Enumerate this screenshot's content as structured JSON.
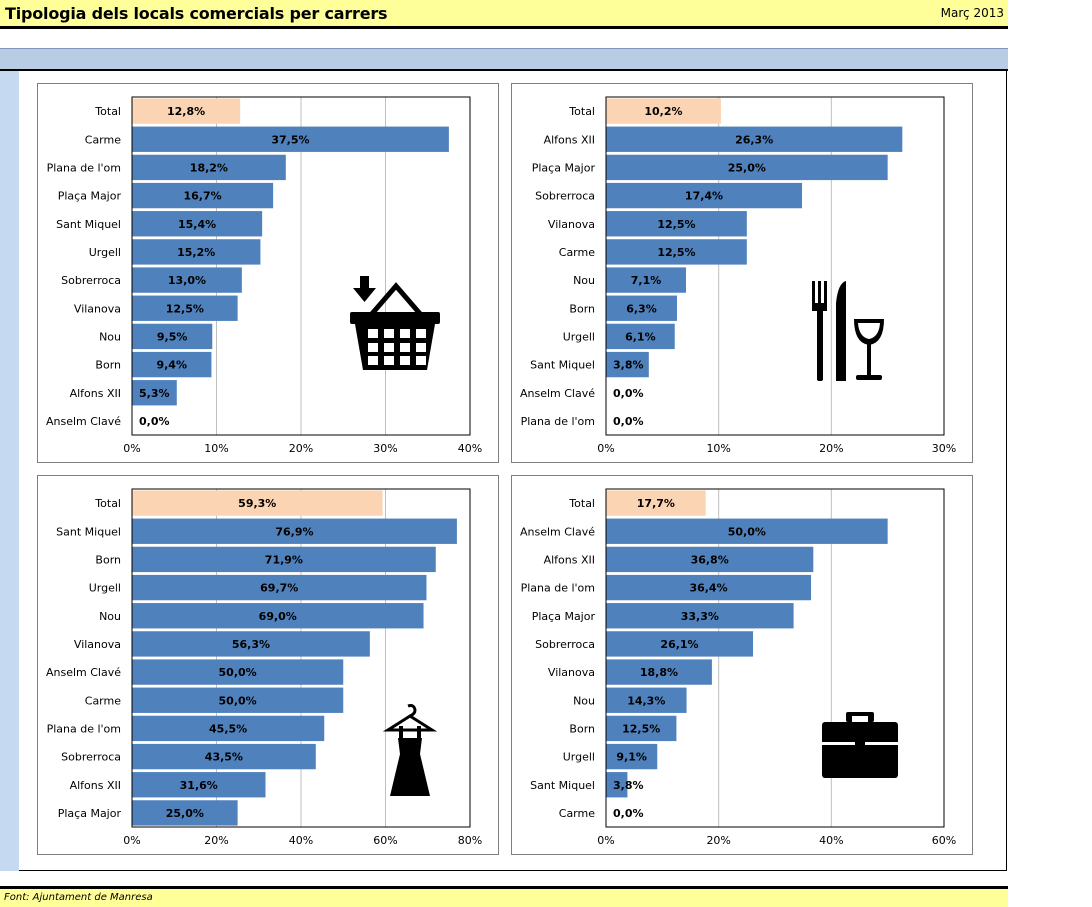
{
  "header": {
    "title": "Tipologia dels locals comercials per carrers",
    "date": "Març 2013"
  },
  "footer": {
    "source": "Font: Ajuntament de Manresa"
  },
  "colors": {
    "bar": "#4f81bd",
    "total_bar": "#fbd4b4",
    "grid": "#bfbfbf"
  },
  "chart_data": [
    {
      "type": "bar",
      "orientation": "horizontal",
      "icon": "shopping-basket-icon",
      "categories": [
        "Total",
        "Carme",
        "Plana de l'om",
        "Plaça Major",
        "Sant Miquel",
        "Urgell",
        "Sobrerroca",
        "Vilanova",
        "Nou",
        "Born",
        "Alfons XII",
        "Anselm Clavé"
      ],
      "values": [
        12.8,
        37.5,
        18.2,
        16.7,
        15.4,
        15.2,
        13.0,
        12.5,
        9.5,
        9.4,
        5.3,
        0.0
      ],
      "value_labels": [
        "12,8%",
        "37,5%",
        "18,2%",
        "16,7%",
        "15,4%",
        "15,2%",
        "13,0%",
        "12,5%",
        "9,5%",
        "9,4%",
        "5,3%",
        "0,0%"
      ],
      "xlim": [
        0,
        40
      ],
      "ticks": [
        "0%",
        "10%",
        "20%",
        "30%",
        "40%"
      ]
    },
    {
      "type": "bar",
      "orientation": "horizontal",
      "icon": "restaurant-icon",
      "categories": [
        "Total",
        "Alfons XII",
        "Plaça Major",
        "Sobrerroca",
        "Vilanova",
        "Carme",
        "Nou",
        "Born",
        "Urgell",
        "Sant Miquel",
        "Anselm Clavé",
        "Plana de l'om"
      ],
      "values": [
        10.2,
        26.3,
        25.0,
        17.4,
        12.5,
        12.5,
        7.1,
        6.3,
        6.1,
        3.8,
        0.0,
        0.0
      ],
      "value_labels": [
        "10,2%",
        "26,3%",
        "25,0%",
        "17,4%",
        "12,5%",
        "12,5%",
        "7,1%",
        "6,3%",
        "6,1%",
        "3,8%",
        "0,0%",
        "0,0%"
      ],
      "xlim": [
        0,
        30
      ],
      "ticks": [
        "0%",
        "10%",
        "20%",
        "30%"
      ]
    },
    {
      "type": "bar",
      "orientation": "horizontal",
      "icon": "dress-icon",
      "categories": [
        "Total",
        "Sant Miquel",
        "Born",
        "Urgell",
        "Nou",
        "Vilanova",
        "Anselm Clavé",
        "Carme",
        "Plana de l'om",
        "Sobrerroca",
        "Alfons XII",
        "Plaça Major"
      ],
      "values": [
        59.3,
        76.9,
        71.9,
        69.7,
        69.0,
        56.3,
        50.0,
        50.0,
        45.5,
        43.5,
        31.6,
        25.0
      ],
      "value_labels": [
        "59,3%",
        "76,9%",
        "71,9%",
        "69,7%",
        "69,0%",
        "56,3%",
        "50,0%",
        "50,0%",
        "45,5%",
        "43,5%",
        "31,6%",
        "25,0%"
      ],
      "xlim": [
        0,
        80
      ],
      "ticks": [
        "0%",
        "20%",
        "40%",
        "60%",
        "80%"
      ]
    },
    {
      "type": "bar",
      "orientation": "horizontal",
      "icon": "briefcase-icon",
      "categories": [
        "Total",
        "Anselm Clavé",
        "Alfons XII",
        "Plana de l'om",
        "Plaça Major",
        "Sobrerroca",
        "Vilanova",
        "Nou",
        "Born",
        "Urgell",
        "Sant Miquel",
        "Carme"
      ],
      "values": [
        17.7,
        50.0,
        36.8,
        36.4,
        33.3,
        26.1,
        18.8,
        14.3,
        12.5,
        9.1,
        3.8,
        0.0
      ],
      "value_labels": [
        "17,7%",
        "50,0%",
        "36,8%",
        "36,4%",
        "33,3%",
        "26,1%",
        "18,8%",
        "14,3%",
        "12,5%",
        "9,1%",
        "3,8%",
        "0,0%"
      ],
      "xlim": [
        0,
        60
      ],
      "ticks": [
        "0%",
        "20%",
        "40%",
        "60%"
      ]
    }
  ]
}
